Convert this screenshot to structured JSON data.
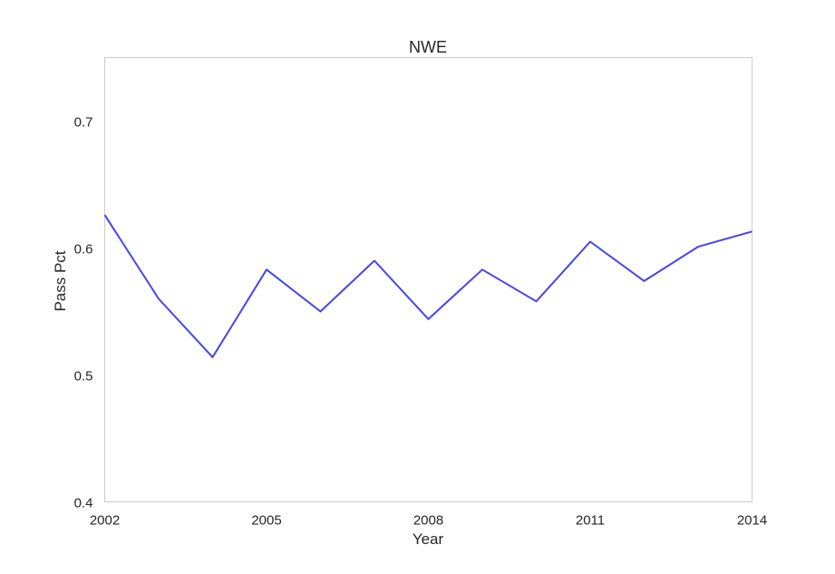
{
  "chart_data": {
    "type": "line",
    "title": "NWE",
    "xlabel": "Year",
    "ylabel": "Pass Pct",
    "xlim": [
      2002,
      2014
    ],
    "ylim": [
      0.4,
      0.75
    ],
    "x_ticks": [
      2002,
      2005,
      2008,
      2011,
      2014
    ],
    "y_ticks": [
      "0.4",
      "0.5",
      "0.6",
      "0.7"
    ],
    "grid": false,
    "series": [
      {
        "x": [
          2002,
          2003,
          2004,
          2005,
          2006,
          2007,
          2008,
          2009,
          2010,
          2011,
          2012,
          2013,
          2014
        ],
        "values": [
          0.626,
          0.56,
          0.514,
          0.583,
          0.55,
          0.59,
          0.544,
          0.583,
          0.558,
          0.605,
          0.574,
          0.601,
          0.613
        ],
        "color": "#4444ee"
      }
    ]
  }
}
